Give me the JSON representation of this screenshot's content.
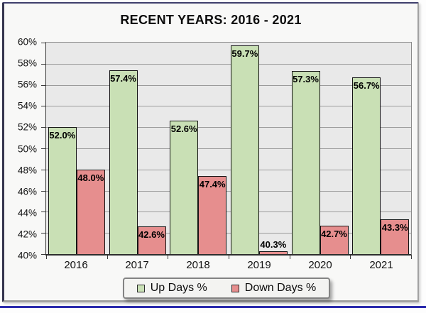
{
  "title": "RECENT YEARS: 2016 - 2021",
  "legend": {
    "up_label": "Up Days %",
    "down_label": "Down Days %"
  },
  "colors": {
    "up_bar": "#c9e0b5",
    "down_bar": "#e68e8e",
    "bar_border": "#141414",
    "plot_background": "#e9e9e9",
    "gridline": "#9b9b9b",
    "frame_top_left": "#3f3f6d",
    "bottom_rule": "#2a2aad"
  },
  "y_axis": {
    "tick_labels": [
      "60%",
      "58%",
      "56%",
      "54%",
      "52%",
      "50%",
      "48%",
      "46%",
      "44%",
      "42%",
      "40%"
    ],
    "min": 40,
    "max": 60,
    "step": 2
  },
  "chart_data": {
    "type": "bar",
    "title": "RECENT YEARS: 2016 - 2021",
    "categories": [
      "2016",
      "2017",
      "2018",
      "2019",
      "2020",
      "2021"
    ],
    "series": [
      {
        "name": "Up Days %",
        "values": [
          52.0,
          57.4,
          52.6,
          59.7,
          57.3,
          56.7
        ],
        "labels": [
          "52.0%",
          "57.4%",
          "52.6%",
          "59.7%",
          "57.3%",
          "56.7%"
        ],
        "color": "#c9e0b5"
      },
      {
        "name": "Down Days %",
        "values": [
          48.0,
          42.6,
          47.4,
          40.3,
          42.7,
          43.3
        ],
        "labels": [
          "48.0%",
          "42.6%",
          "47.4%",
          "40.3%",
          "42.7%",
          "43.3%"
        ],
        "color": "#e68e8e"
      }
    ],
    "xlabel": "",
    "ylabel": "",
    "ylim": [
      40,
      60
    ],
    "ytick_step": 2,
    "grid": true,
    "legend_position": "bottom"
  }
}
